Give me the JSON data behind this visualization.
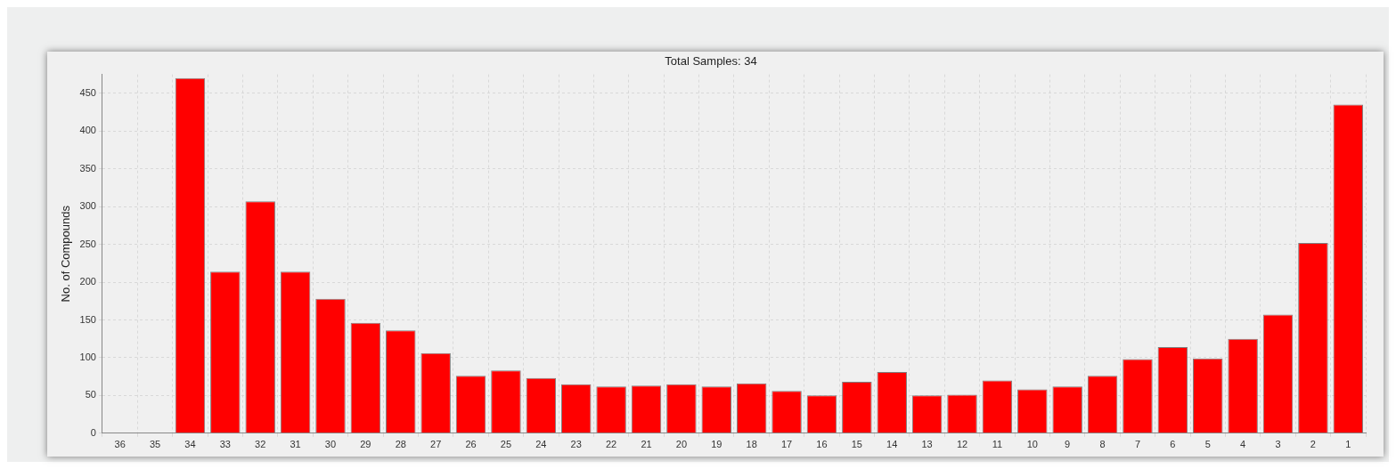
{
  "chart_data": {
    "type": "bar",
    "title": "Total Samples: 34",
    "ylabel": "No. of Compounds",
    "categories": [
      "36",
      "35",
      "34",
      "33",
      "32",
      "31",
      "30",
      "29",
      "28",
      "27",
      "26",
      "25",
      "24",
      "23",
      "22",
      "21",
      "20",
      "19",
      "18",
      "17",
      "16",
      "15",
      "14",
      "13",
      "12",
      "11",
      "10",
      "9",
      "8",
      "7",
      "6",
      "5",
      "4",
      "3",
      "2",
      "1"
    ],
    "values": [
      0,
      0,
      470,
      214,
      307,
      214,
      178,
      146,
      136,
      106,
      76,
      83,
      73,
      65,
      62,
      63,
      65,
      62,
      66,
      56,
      50,
      68,
      81,
      50,
      51,
      70,
      58,
      62,
      76,
      98,
      114,
      99,
      125,
      157,
      252,
      435
    ],
    "color": "#ff0000",
    "ylim": [
      0,
      475
    ],
    "yticks": [
      0,
      50,
      100,
      150,
      200,
      250,
      300,
      350,
      400,
      450
    ],
    "grid": true,
    "legend": false
  }
}
